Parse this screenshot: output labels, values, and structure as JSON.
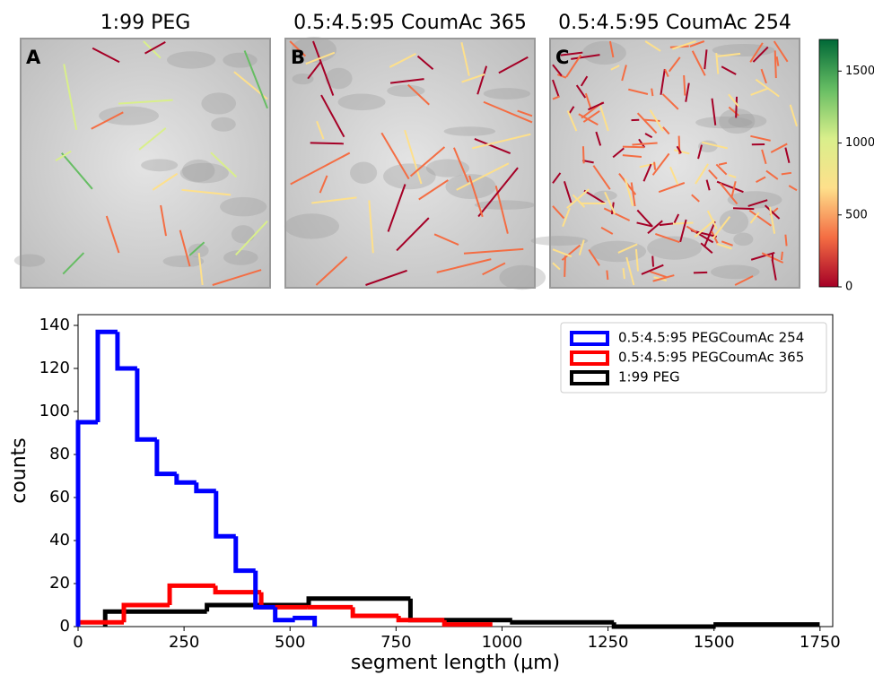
{
  "panels": [
    {
      "label": "A",
      "title": "1:99 PEG"
    },
    {
      "label": "B",
      "title": "0.5:4.5:95 CoumAc 365"
    },
    {
      "label": "C",
      "title": "0.5:4.5:95 CoumAc 254"
    }
  ],
  "colorbar": {
    "ylim": [
      0,
      1720
    ],
    "yticks": [
      0,
      500,
      1000,
      1500
    ],
    "colors": [
      "#a50026",
      "#f46d43",
      "#fee08b",
      "#d9ef8b",
      "#66bd63",
      "#006837"
    ]
  },
  "chart_data": {
    "type": "histogram",
    "xlabel": "segment length (μm)",
    "ylabel": "counts",
    "xlim": [
      0,
      1780
    ],
    "ylim": [
      0,
      145
    ],
    "xticks": [
      0,
      250,
      500,
      750,
      1000,
      1250,
      1500,
      1750
    ],
    "yticks": [
      0,
      20,
      40,
      60,
      80,
      100,
      120,
      140
    ],
    "legend": "upper right",
    "series": [
      {
        "name": "0.5:4.5:95 PEGCoumAc 254",
        "color": "#0000ff",
        "bins": [
          0,
          46.5,
          93,
          139.5,
          186,
          232.5,
          279,
          325.5,
          372,
          418.5,
          465,
          511.5,
          558
        ],
        "values": [
          95,
          137,
          120,
          87,
          71,
          67,
          63,
          42,
          26,
          9,
          3,
          4
        ]
      },
      {
        "name": "0.5:4.5:95 PEGCoumAc 365",
        "color": "#ff0000",
        "bins": [
          0,
          108,
          216,
          324,
          432,
          540,
          648,
          756,
          864,
          972
        ],
        "values": [
          2,
          10,
          19,
          16,
          9,
          9,
          5,
          3,
          1
        ]
      },
      {
        "name": "1:99 PEG",
        "color": "#000000",
        "bins": [
          64,
          304,
          544,
          784,
          1024,
          1264,
          1504,
          1744
        ],
        "values": [
          7,
          10,
          13,
          3,
          2,
          0,
          1
        ]
      }
    ]
  }
}
